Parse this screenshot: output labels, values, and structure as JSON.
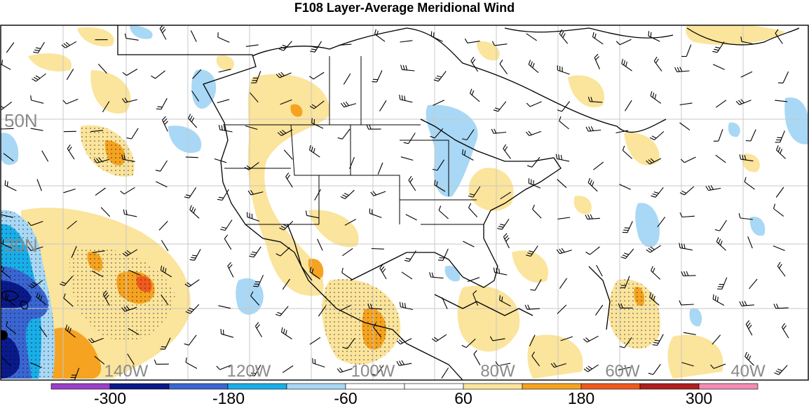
{
  "title": "F108 Layer-Average Meridional Wind",
  "map": {
    "lat_labels": [
      "50N",
      "30N"
    ],
    "lon_labels": [
      "140W",
      "120W",
      "100W",
      "80W",
      "60W",
      "40W"
    ]
  },
  "colorbar": {
    "colors": [
      "#9b3fc8",
      "#0a1a8a",
      "#3a66d2",
      "#1aaee8",
      "#a8d8f5",
      "#ffffff",
      "#ffffff",
      "#fbe49b",
      "#f5a320",
      "#f05a1e",
      "#b01e1e",
      "#f28cb4"
    ],
    "tick_labels": [
      "-300",
      "-180",
      "-60",
      "60",
      "180",
      "300"
    ]
  },
  "palette": {
    "light_yellow": "#fbe49b",
    "orange": "#f5a320",
    "red_orange": "#f05a1e",
    "light_blue": "#a8d8f5",
    "cyan": "#1aaee8",
    "mid_blue": "#3a66d2",
    "dark_blue": "#0a1a8a"
  }
}
